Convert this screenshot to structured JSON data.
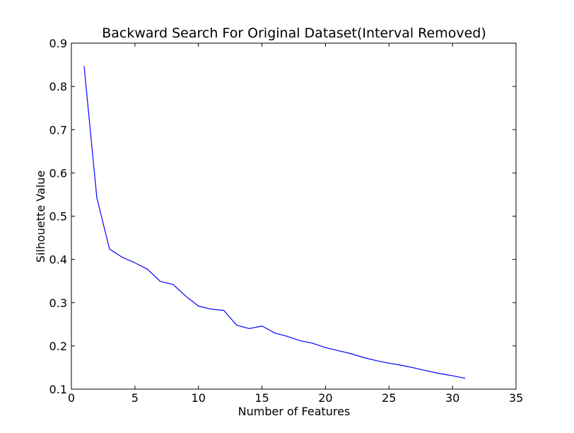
{
  "chart_data": {
    "type": "line",
    "title": "Backward Search For Original Dataset(Interval Removed)",
    "xlabel": "Number of Features",
    "ylabel": "Silhouette Value",
    "xlim": [
      0,
      35
    ],
    "ylim": [
      0.1,
      0.9
    ],
    "xticks": [
      "0",
      "5",
      "10",
      "15",
      "20",
      "25",
      "30",
      "35"
    ],
    "yticks": [
      "0.1",
      "0.2",
      "0.3",
      "0.4",
      "0.5",
      "0.6",
      "0.7",
      "0.8",
      "0.9"
    ],
    "grid": false,
    "series": [
      {
        "color": "#0000ff",
        "x": [
          1,
          2,
          3,
          4,
          5,
          6,
          7,
          8,
          9,
          10,
          11,
          12,
          13,
          14,
          15,
          16,
          17,
          18,
          19,
          20,
          21,
          22,
          23,
          24,
          25,
          26,
          27,
          28,
          29,
          30,
          31
        ],
        "y": [
          0.847,
          0.543,
          0.424,
          0.405,
          0.392,
          0.377,
          0.349,
          0.342,
          0.315,
          0.292,
          0.285,
          0.282,
          0.248,
          0.24,
          0.246,
          0.23,
          0.222,
          0.212,
          0.206,
          0.196,
          0.189,
          0.182,
          0.173,
          0.166,
          0.16,
          0.155,
          0.149,
          0.142,
          0.136,
          0.131,
          0.125
        ]
      }
    ]
  }
}
